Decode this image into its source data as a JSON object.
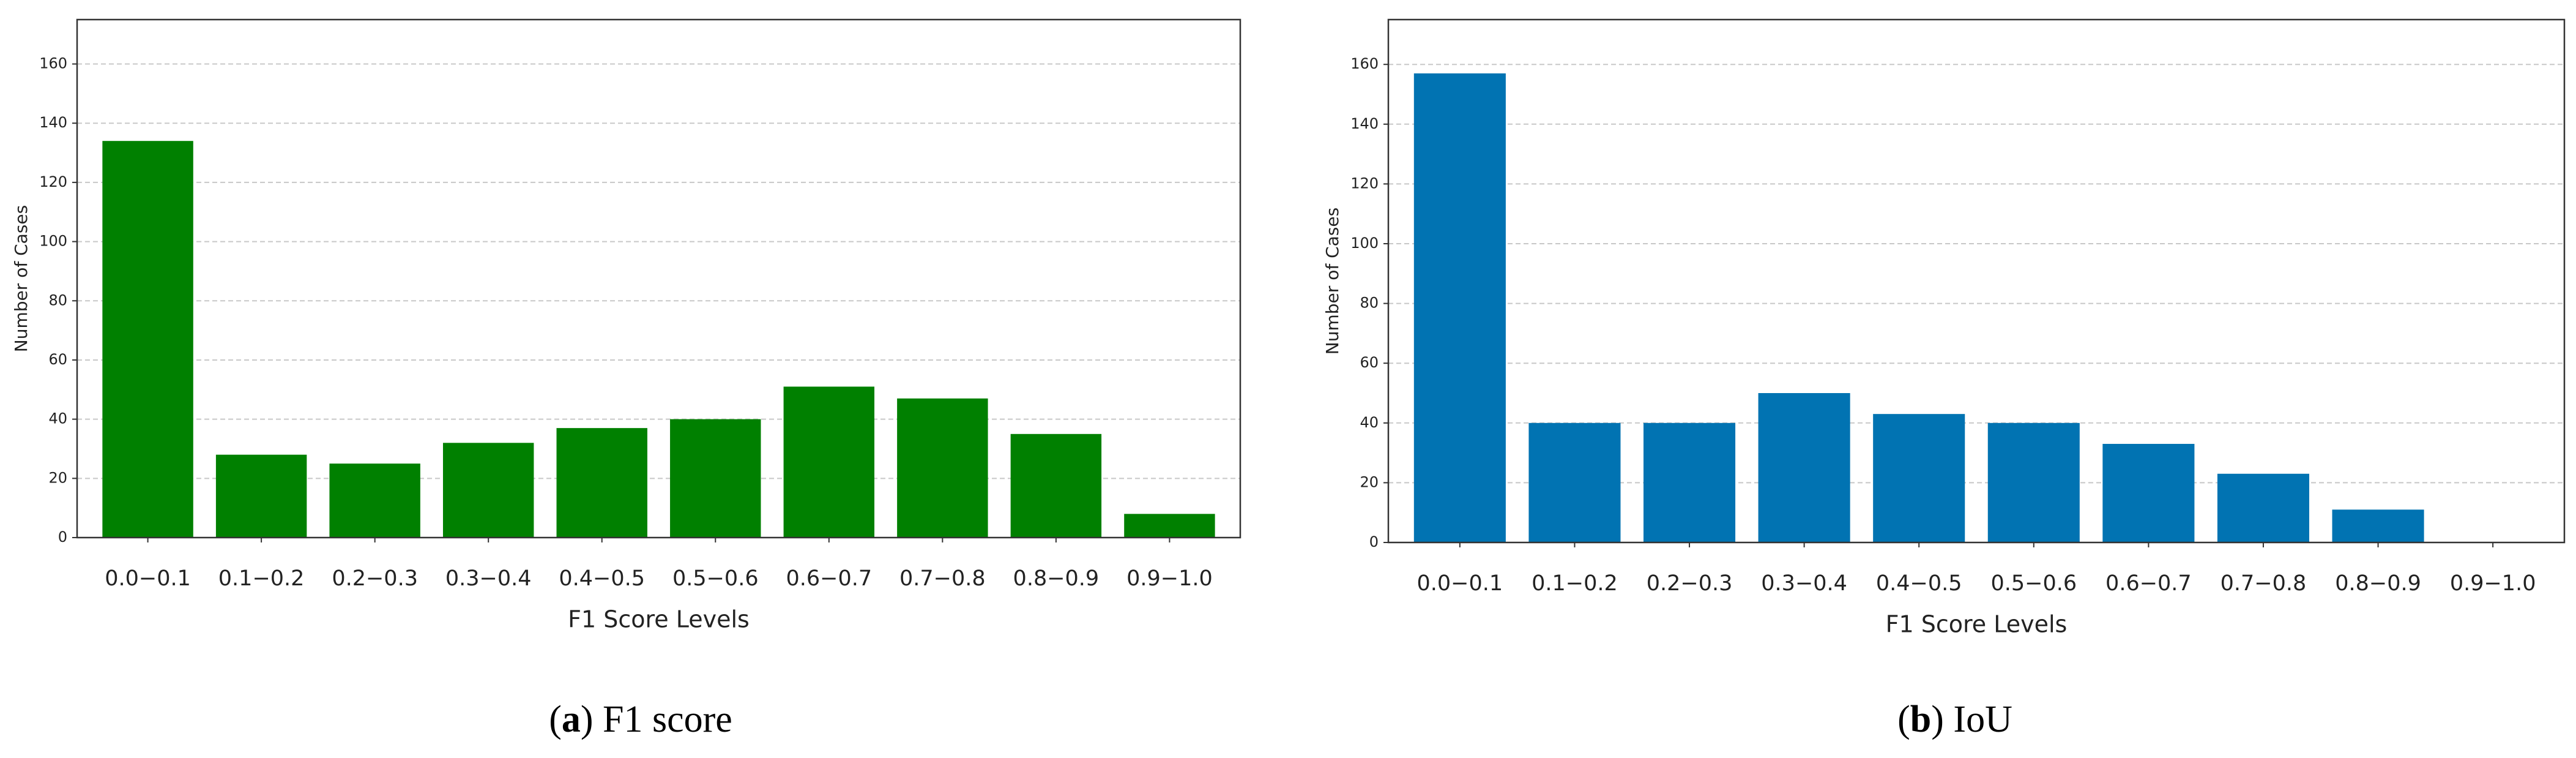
{
  "chart_data": [
    {
      "type": "bar",
      "color": "#008000",
      "ylabel": "Number of Cases",
      "xlabel": "F1 Score Levels",
      "categories": [
        "0.0−0.1",
        "0.1−0.2",
        "0.2−0.3",
        "0.3−0.4",
        "0.4−0.5",
        "0.5−0.6",
        "0.6−0.7",
        "0.7−0.8",
        "0.8−0.9",
        "0.9−1.0"
      ],
      "values": [
        134,
        28,
        25,
        32,
        37,
        40,
        51,
        47,
        35,
        8
      ],
      "ylim": [
        0,
        175
      ],
      "yticks": [
        0,
        20,
        40,
        60,
        80,
        100,
        120,
        140,
        160
      ],
      "grid": true,
      "caption": [
        "(",
        "a",
        ") F1 score"
      ]
    },
    {
      "type": "bar",
      "color": "#0173b2",
      "ylabel": "Number of Cases",
      "xlabel": "F1 Score Levels",
      "categories": [
        "0.0−0.1",
        "0.1−0.2",
        "0.2−0.3",
        "0.3−0.4",
        "0.4−0.5",
        "0.5−0.6",
        "0.6−0.7",
        "0.7−0.8",
        "0.8−0.9",
        "0.9−1.0"
      ],
      "values": [
        157,
        40,
        40,
        50,
        43,
        40,
        33,
        23,
        11,
        0
      ],
      "ylim": [
        0,
        175
      ],
      "yticks": [
        0,
        20,
        40,
        60,
        80,
        100,
        120,
        140,
        160
      ],
      "grid": true,
      "caption": [
        "(",
        "b",
        ") IoU"
      ]
    }
  ]
}
